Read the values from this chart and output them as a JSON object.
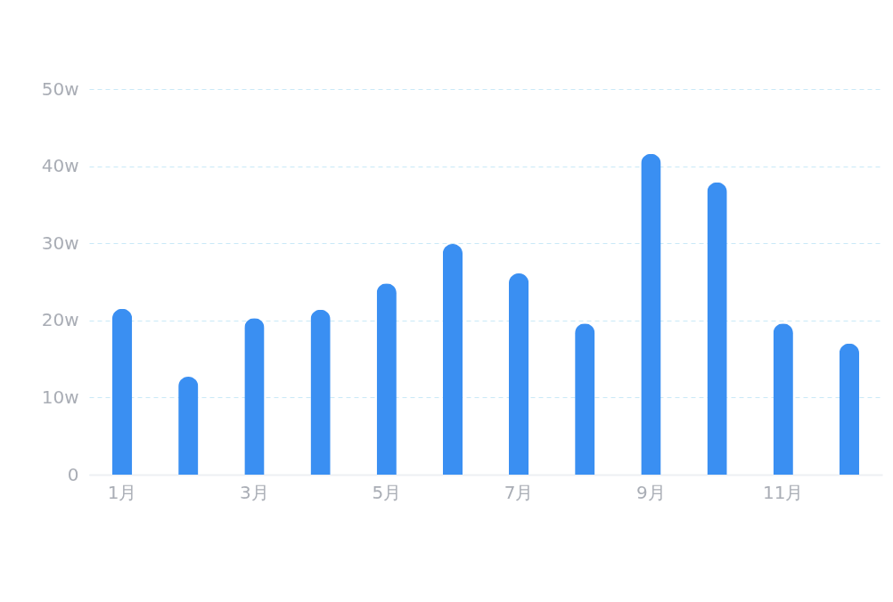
{
  "chart_data": {
    "type": "bar",
    "categories": [
      "1月",
      null,
      "3月",
      null,
      "5月",
      null,
      "7月",
      null,
      "9月",
      null,
      "11月",
      null
    ],
    "values": [
      21.5,
      12.7,
      20.3,
      21.4,
      24.8,
      29.9,
      26.1,
      19.6,
      41.6,
      37.9,
      19.6,
      17.0
    ],
    "color": "#3a8ff2",
    "ylim": [
      0,
      50
    ],
    "yticks": [
      0,
      {
        "value": 10,
        "label": "10w"
      },
      {
        "value": 20,
        "label": "20w"
      },
      {
        "value": 30,
        "label": "30w"
      },
      {
        "value": 40,
        "label": "40w"
      },
      {
        "value": 50,
        "label": "50w"
      }
    ],
    "grid": "y"
  }
}
